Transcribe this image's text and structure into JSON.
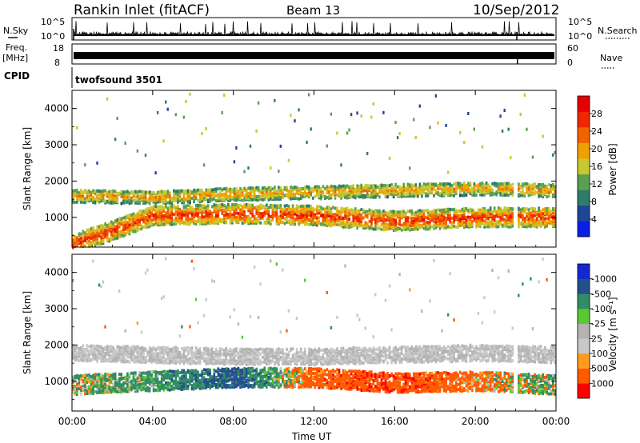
{
  "header": {
    "title": "Rankin Inlet (fitACF)",
    "beam": "Beam 13",
    "date": "10/Sep/2012"
  },
  "aux_panels": {
    "nsky_label": "N.Sky",
    "nsky_ticks": [
      "10^5",
      "10^0"
    ],
    "nsearch_label": "N.Search",
    "nsearch_ticks": [
      "10^5",
      "10^0"
    ],
    "freq_label": "Freq.",
    "freq_unit": "[MHz]",
    "freq_ticks": [
      "18",
      "8"
    ],
    "nave_label": "Nave",
    "nave_ticks": [
      "60",
      "0"
    ],
    "cpid_label": "CPID",
    "cpid_value": "twofsound 3501"
  },
  "colors": {
    "power_scale": [
      "#0a1ee6",
      "#1e4696",
      "#2e7d6a",
      "#5aa050",
      "#c8c832",
      "#f0a000",
      "#f06400",
      "#f02800",
      "#e60000"
    ],
    "velocity_scale": [
      "#ff0000",
      "#ff5a00",
      "#ff9b1e",
      "#c8c8c8",
      "#b4b4b4",
      "#5ac832",
      "#328c64",
      "#23508c",
      "#1428d2"
    ]
  },
  "chart_data": [
    {
      "type": "heatmap",
      "title": "",
      "xlabel": "",
      "ylabel": "Slant Range [km]",
      "x_ticks": [
        "00:00",
        "04:00",
        "08:00",
        "12:00",
        "16:00",
        "20:00",
        "00:00"
      ],
      "y_ticks": [
        "1000",
        "2000",
        "3000",
        "4000"
      ],
      "xlim_hours": [
        0,
        24
      ],
      "ylim_km": [
        180,
        4500
      ],
      "colorbar": {
        "label": "Power [dB]",
        "ticks": [
          "4",
          "8",
          "12",
          "16",
          "20",
          "24",
          "28"
        ],
        "range": [
          0,
          30
        ]
      },
      "echo_bands": [
        {
          "name": "near-range band",
          "center_km": [
            250,
            1050,
            1100,
            1050,
            900,
            1000,
            1000
          ],
          "width_km": 500,
          "strength_db": 27
        },
        {
          "name": "mid-range band",
          "center_km": [
            1600,
            1550,
            1650,
            1700,
            1750,
            1800,
            1750
          ],
          "width_km": 350,
          "strength_db": 20
        }
      ]
    },
    {
      "type": "heatmap",
      "title": "",
      "xlabel": "Time UT",
      "ylabel": "Slant Range [km]",
      "x_ticks": [
        "00:00",
        "04:00",
        "08:00",
        "12:00",
        "16:00",
        "20:00",
        "00:00"
      ],
      "y_ticks": [
        "1000",
        "2000",
        "3000",
        "4000"
      ],
      "xlim_hours": [
        0,
        24
      ],
      "ylim_km": [
        180,
        4500
      ],
      "colorbar": {
        "label": "Velocity [m s⁻¹]",
        "ticks": [
          "1000",
          "500",
          "100",
          "25",
          "-25",
          "-100",
          "-500",
          "-1000"
        ],
        "range": [
          -1000,
          1000
        ]
      },
      "echo_bands": [
        {
          "name": "near-range band",
          "center_km": [
            900,
            1000,
            1100,
            1100,
            950,
            1000,
            900
          ],
          "width_km": 500,
          "velocity_ms": [
            100,
            200,
            700,
            -300,
            -400,
            -200,
            150
          ]
        },
        {
          "name": "ground scatter band",
          "center_km": [
            1800,
            1750,
            1700,
            1700,
            1750,
            1800,
            1750
          ],
          "width_km": 450,
          "velocity_ms": 0
        }
      ]
    }
  ]
}
